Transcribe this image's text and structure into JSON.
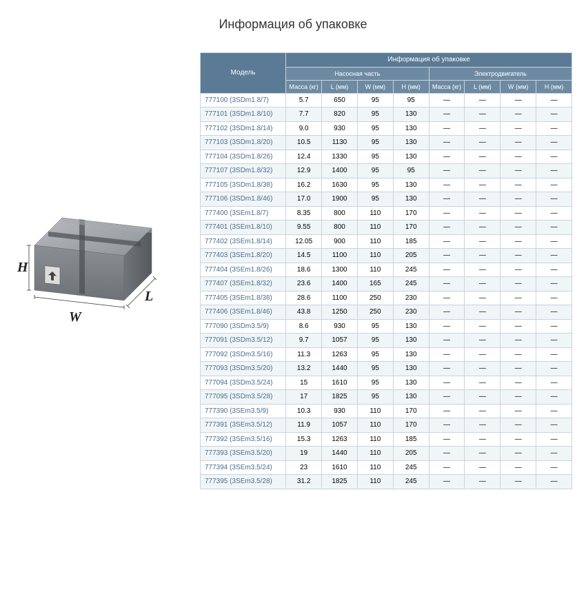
{
  "title": "Информация об упаковке",
  "illustration": {
    "labels": {
      "H": "H",
      "W": "W",
      "L": "L"
    }
  },
  "table": {
    "header": {
      "model": "Модель",
      "info": "Информация об упаковке",
      "pump": "Насосная часть",
      "motor": "Электродвигатель",
      "mass": "Масса (кг)",
      "L": "L (мм)",
      "W": "W (мм)",
      "H": "H (мм)"
    },
    "rows": [
      {
        "model": "777100 (3SDm1.8/7)",
        "m": "5.7",
        "l": "650",
        "w": "95",
        "h": "95",
        "m2": "—",
        "l2": "—",
        "w2": "—",
        "h2": "—"
      },
      {
        "model": "777101 (3SDm1.8/10)",
        "m": "7.7",
        "l": "820",
        "w": "95",
        "h": "130",
        "m2": "—",
        "l2": "—",
        "w2": "—",
        "h2": "—"
      },
      {
        "model": "777102 (3SDm1.8/14)",
        "m": "9.0",
        "l": "930",
        "w": "95",
        "h": "130",
        "m2": "—",
        "l2": "—",
        "w2": "—",
        "h2": "—"
      },
      {
        "model": "777103 (3SDm1.8/20)",
        "m": "10.5",
        "l": "1130",
        "w": "95",
        "h": "130",
        "m2": "—",
        "l2": "—",
        "w2": "—",
        "h2": "—"
      },
      {
        "model": "777104 (3SDm1.8/26)",
        "m": "12.4",
        "l": "1330",
        "w": "95",
        "h": "130",
        "m2": "—",
        "l2": "—",
        "w2": "—",
        "h2": "—"
      },
      {
        "model": "777107 (3SDm1.8/32)",
        "m": "12.9",
        "l": "1400",
        "w": "95",
        "h": "95",
        "m2": "—",
        "l2": "—",
        "w2": "—",
        "h2": "—"
      },
      {
        "model": "777105 (3SDm1.8/38)",
        "m": "16.2",
        "l": "1630",
        "w": "95",
        "h": "130",
        "m2": "—",
        "l2": "—",
        "w2": "—",
        "h2": "—"
      },
      {
        "model": "777106 (3SDm1.8/46)",
        "m": "17.0",
        "l": "1900",
        "w": "95",
        "h": "130",
        "m2": "—",
        "l2": "—",
        "w2": "—",
        "h2": "—"
      },
      {
        "model": "777400 (3SEm1.8/7)",
        "m": "8.35",
        "l": "800",
        "w": "110",
        "h": "170",
        "m2": "—",
        "l2": "—",
        "w2": "—",
        "h2": "—"
      },
      {
        "model": "777401 (3SEm1.8/10)",
        "m": "9.55",
        "l": "800",
        "w": "110",
        "h": "170",
        "m2": "—",
        "l2": "—",
        "w2": "—",
        "h2": "—"
      },
      {
        "model": "777402 (3SEm1.8/14)",
        "m": "12.05",
        "l": "900",
        "w": "110",
        "h": "185",
        "m2": "—",
        "l2": "—",
        "w2": "—",
        "h2": "—"
      },
      {
        "model": "777403 (3SEm1.8/20)",
        "m": "14.5",
        "l": "1100",
        "w": "110",
        "h": "205",
        "m2": "—",
        "l2": "—",
        "w2": "—",
        "h2": "—"
      },
      {
        "model": "777404 (3SEm1.8/26)",
        "m": "18.6",
        "l": "1300",
        "w": "110",
        "h": "245",
        "m2": "—",
        "l2": "—",
        "w2": "—",
        "h2": "—"
      },
      {
        "model": "777407 (3SEm1.8/32)",
        "m": "23.6",
        "l": "1400",
        "w": "165",
        "h": "245",
        "m2": "—",
        "l2": "—",
        "w2": "—",
        "h2": "—"
      },
      {
        "model": "777405 (3SEm1.8/38)",
        "m": "28.6",
        "l": "1100",
        "w": "250",
        "h": "230",
        "m2": "—",
        "l2": "—",
        "w2": "—",
        "h2": "—"
      },
      {
        "model": "777406 (3SEm1.8/46)",
        "m": "43.8",
        "l": "1250",
        "w": "250",
        "h": "230",
        "m2": "—",
        "l2": "—",
        "w2": "—",
        "h2": "—"
      },
      {
        "model": "777090 (3SDm3.5/9)",
        "m": "8.6",
        "l": "930",
        "w": "95",
        "h": "130",
        "m2": "—",
        "l2": "—",
        "w2": "—",
        "h2": "—"
      },
      {
        "model": "777091 (3SDm3.5/12)",
        "m": "9.7",
        "l": "1057",
        "w": "95",
        "h": "130",
        "m2": "—",
        "l2": "—",
        "w2": "—",
        "h2": "—"
      },
      {
        "model": "777092 (3SDm3.5/16)",
        "m": "11.3",
        "l": "1263",
        "w": "95",
        "h": "130",
        "m2": "—",
        "l2": "—",
        "w2": "—",
        "h2": "—"
      },
      {
        "model": "777093 (3SDm3.5/20)",
        "m": "13.2",
        "l": "1440",
        "w": "95",
        "h": "130",
        "m2": "—",
        "l2": "—",
        "w2": "—",
        "h2": "—"
      },
      {
        "model": "777094 (3SDm3.5/24)",
        "m": "15",
        "l": "1610",
        "w": "95",
        "h": "130",
        "m2": "—",
        "l2": "—",
        "w2": "—",
        "h2": "—"
      },
      {
        "model": "777095 (3SDm3.5/28)",
        "m": "17",
        "l": "1825",
        "w": "95",
        "h": "130",
        "m2": "—",
        "l2": "—",
        "w2": "—",
        "h2": "—"
      },
      {
        "model": "777390 (3SEm3.5/9)",
        "m": "10.3",
        "l": "930",
        "w": "110",
        "h": "170",
        "m2": "—",
        "l2": "—",
        "w2": "—",
        "h2": "—"
      },
      {
        "model": "777391 (3SEm3.5/12)",
        "m": "11.9",
        "l": "1057",
        "w": "110",
        "h": "170",
        "m2": "—",
        "l2": "—",
        "w2": "—",
        "h2": "—"
      },
      {
        "model": "777392 (3SEm3.5/16)",
        "m": "15.3",
        "l": "1263",
        "w": "110",
        "h": "185",
        "m2": "—",
        "l2": "—",
        "w2": "—",
        "h2": "—"
      },
      {
        "model": "777393 (3SEm3.5/20)",
        "m": "19",
        "l": "1440",
        "w": "110",
        "h": "205",
        "m2": "—",
        "l2": "—",
        "w2": "—",
        "h2": "—"
      },
      {
        "model": "777394 (3SEm3.5/24)",
        "m": "23",
        "l": "1610",
        "w": "110",
        "h": "245",
        "m2": "—",
        "l2": "—",
        "w2": "—",
        "h2": "—"
      },
      {
        "model": "777395 (3SEm3.5/28)",
        "m": "31.2",
        "l": "1825",
        "w": "110",
        "h": "245",
        "m2": "—",
        "l2": "—",
        "w2": "—",
        "h2": "—"
      }
    ]
  }
}
